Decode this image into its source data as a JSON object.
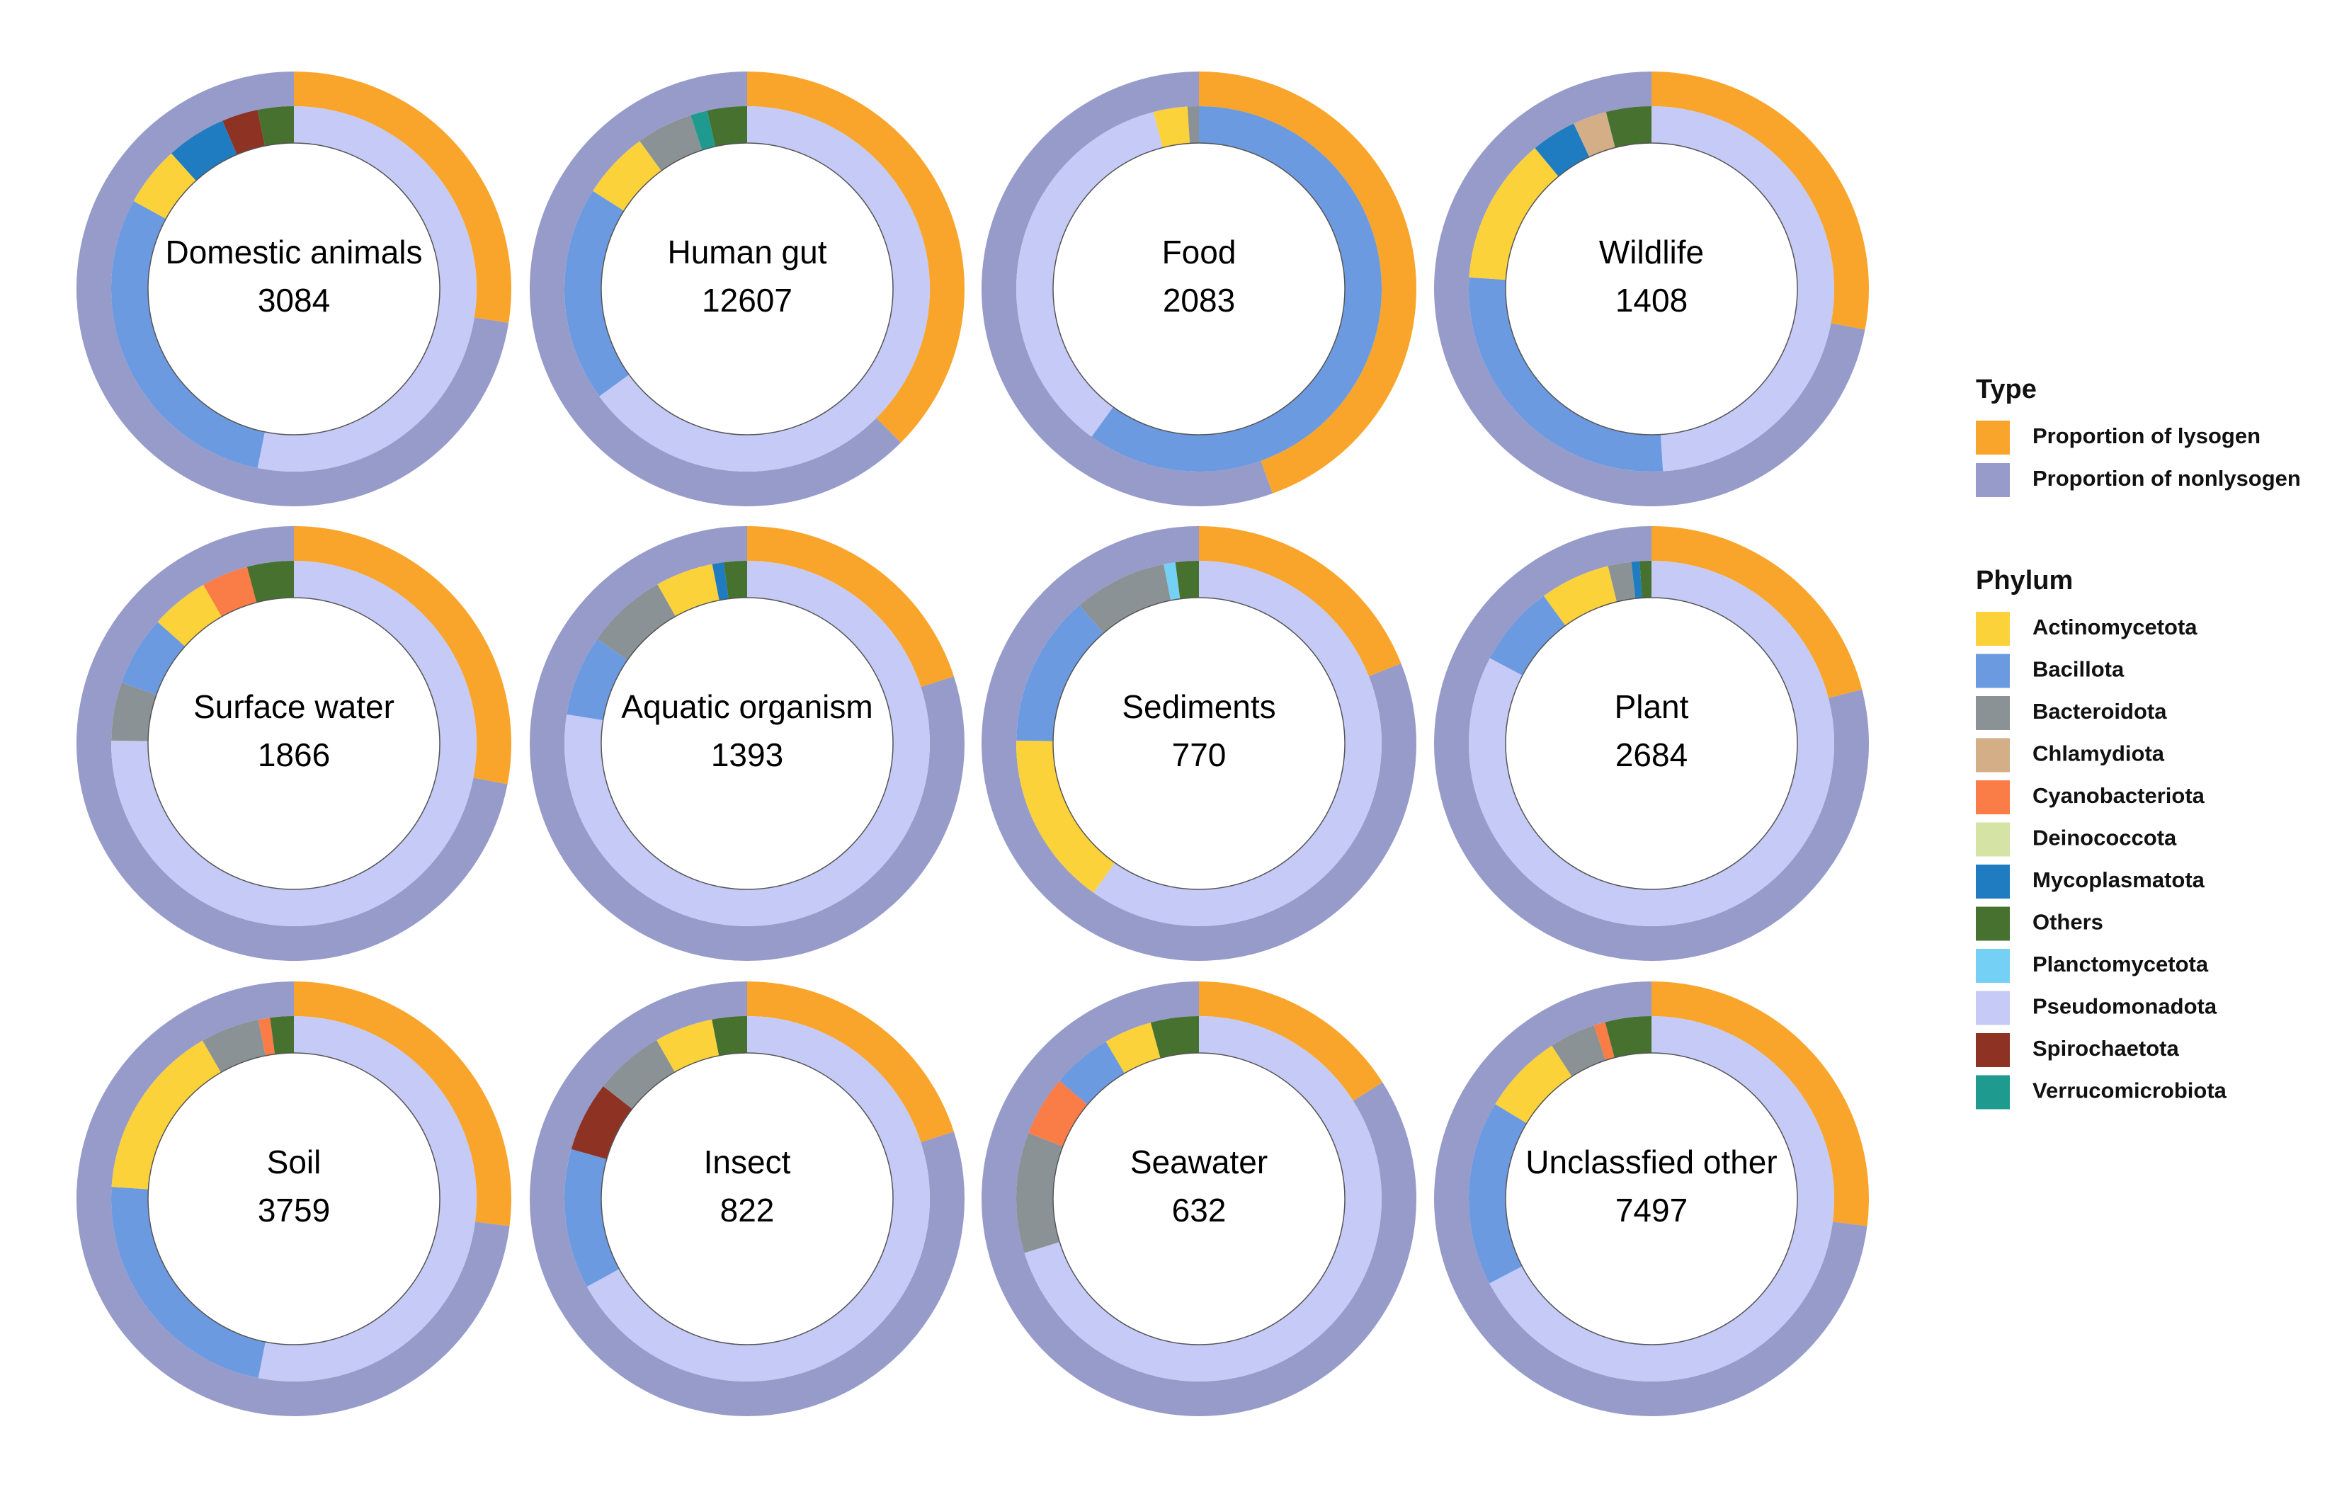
{
  "chart_data": {
    "type": "donut-grid",
    "colors": {
      "lysogen": "#F9A52B",
      "nonlysogen": "#979BCA",
      "Actinomycetota": "#FCD23A",
      "Bacillota": "#6C9AE0",
      "Bacteroidota": "#8A9296",
      "Chlamydiota": "#D4AE86",
      "Cyanobacteriota": "#FA7C47",
      "Deinococcota": "#D5E3A4",
      "Mycoplasmatota": "#1F7CC1",
      "Others": "#46712F",
      "Planctomycetota": "#74D1F5",
      "Pseudomonadota": "#C5CAF6",
      "Spirochaetota": "#8E3323",
      "Verrucomicrobiota": "#1F9A8E"
    },
    "panels": [
      {
        "name": "Domestic animals",
        "count": "3084",
        "lysogen": 0.275,
        "phyla": {
          "Pseudomonadota": 0.5,
          "Bacillota": 0.28,
          "Actinomycetota": 0.05,
          "Mycoplasmatota": 0.05,
          "Spirochaetota": 0.03,
          "Others": 0.03
        }
      },
      {
        "name": "Human gut",
        "count": "12607",
        "lysogen": 0.375,
        "phyla": {
          "Pseudomonadota": 0.65,
          "Bacillota": 0.19,
          "Actinomycetota": 0.06,
          "Bacteroidota": 0.05,
          "Verrucomicrobiota": 0.015,
          "Others": 0.035
        }
      },
      {
        "name": "Food",
        "count": "2083",
        "lysogen": 0.445,
        "phyla": {
          "Bacillota": 0.6,
          "Pseudomonadota": 0.36,
          "Actinomycetota": 0.03,
          "Bacteroidota": 0.01
        }
      },
      {
        "name": "Wildlife",
        "count": "1408",
        "lysogen": 0.28,
        "phyla": {
          "Pseudomonadota": 0.49,
          "Bacillota": 0.27,
          "Actinomycetota": 0.13,
          "Mycoplasmatota": 0.04,
          "Chlamydiota": 0.03,
          "Others": 0.04
        }
      },
      {
        "name": "Surface water",
        "count": "1866",
        "lysogen": 0.28,
        "phyla": {
          "Pseudomonadota": 0.73,
          "Bacteroidota": 0.05,
          "Bacillota": 0.06,
          "Actinomycetota": 0.05,
          "Cyanobacteriota": 0.04,
          "Others": 0.04
        }
      },
      {
        "name": "Aquatic organism",
        "count": "1393",
        "lysogen": 0.2,
        "phyla": {
          "Pseudomonadota": 0.76,
          "Bacillota": 0.07,
          "Bacteroidota": 0.07,
          "Actinomycetota": 0.05,
          "Mycoplasmatota": 0.01,
          "Others": 0.02
        }
      },
      {
        "name": "Sediments",
        "count": "770",
        "lysogen": 0.19,
        "phyla": {
          "Pseudomonadota": 0.58,
          "Actinomycetota": 0.15,
          "Bacillota": 0.13,
          "Bacteroidota": 0.08,
          "Planctomycetota": 0.01,
          "Others": 0.02
        }
      },
      {
        "name": "Plant",
        "count": "2684",
        "lysogen": 0.21,
        "phyla": {
          "Pseudomonadota": 0.8,
          "Bacillota": 0.07,
          "Actinomycetota": 0.06,
          "Bacteroidota": 0.02,
          "Mycoplasmatota": 0.007,
          "Others": 0.01
        }
      },
      {
        "name": "Soil",
        "count": "3759",
        "lysogen": 0.27,
        "phyla": {
          "Pseudomonadota": 0.51,
          "Bacillota": 0.22,
          "Actinomycetota": 0.15,
          "Bacteroidota": 0.05,
          "Cyanobacteriota": 0.01,
          "Others": 0.02
        }
      },
      {
        "name": "Insect",
        "count": "822",
        "lysogen": 0.2,
        "phyla": {
          "Pseudomonadota": 0.65,
          "Bacillota": 0.12,
          "Spirochaetota": 0.06,
          "Bacteroidota": 0.06,
          "Actinomycetota": 0.05,
          "Others": 0.03
        }
      },
      {
        "name": "Seawater",
        "count": "632",
        "lysogen": 0.16,
        "phyla": {
          "Pseudomonadota": 0.66,
          "Bacteroidota": 0.1,
          "Cyanobacteriota": 0.05,
          "Bacillota": 0.05,
          "Actinomycetota": 0.04,
          "Others": 0.04
        }
      },
      {
        "name": "Unclassfied other",
        "count": "7497",
        "lysogen": 0.27,
        "phyla": {
          "Pseudomonadota": 0.66,
          "Bacillota": 0.16,
          "Actinomycetota": 0.07,
          "Bacteroidota": 0.04,
          "Cyanobacteriota": 0.01,
          "Others": 0.04
        }
      }
    ],
    "legend": {
      "placement": "right",
      "type_title": "Type",
      "type_items": [
        {
          "key": "lysogen",
          "label": "Proportion of lysogen"
        },
        {
          "key": "nonlysogen",
          "label": "Proportion of nonlysogen"
        }
      ],
      "phylum_title": "Phylum",
      "phylum_items": [
        "Actinomycetota",
        "Bacillota",
        "Bacteroidota",
        "Chlamydiota",
        "Cyanobacteriota",
        "Deinococcota",
        "Mycoplasmatota",
        "Others",
        "Planctomycetota",
        "Pseudomonadota",
        "Spirochaetota",
        "Verrucomicrobiota"
      ]
    }
  }
}
